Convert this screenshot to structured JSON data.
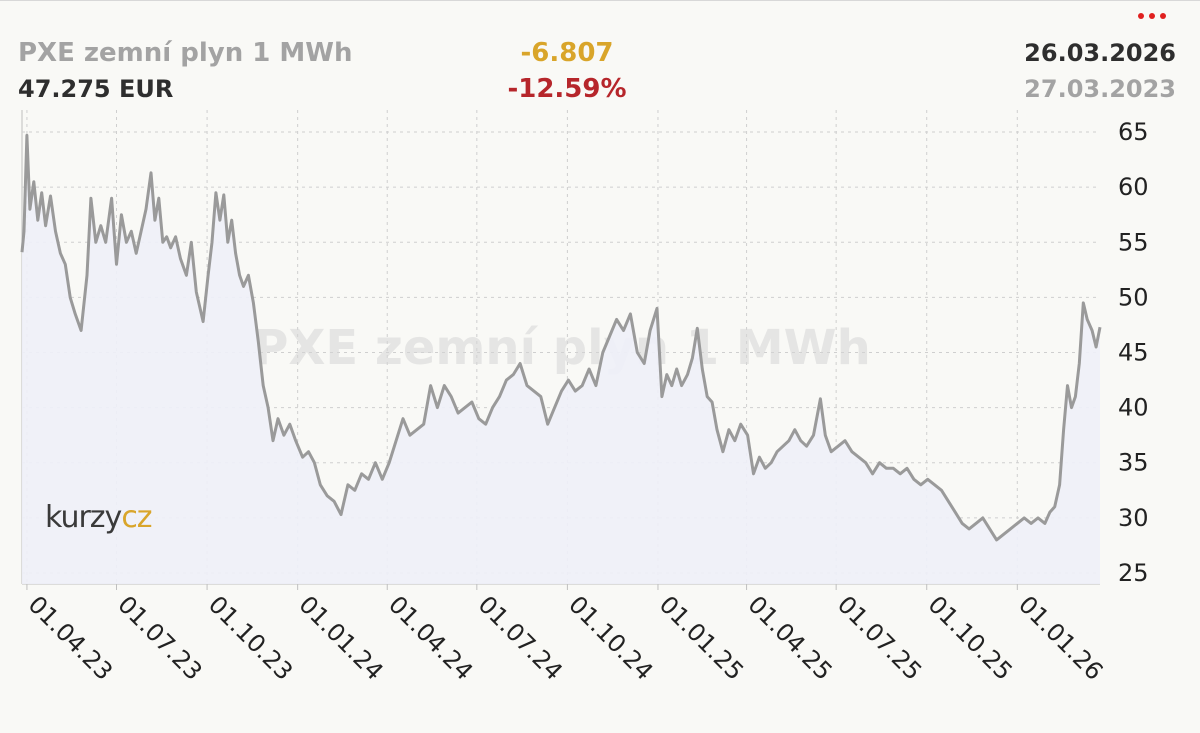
{
  "header": {
    "title": "PXE zemní plyn 1 MWh",
    "price": "47.275 EUR",
    "change": "-6.807",
    "change_pct": "-12.59%",
    "date_end": "26.03.2026",
    "date_start": "27.03.2023"
  },
  "watermark": "PXE zemní plyn 1 MWh",
  "logo": {
    "left": "kurzy",
    "right": "cz"
  },
  "colors": {
    "line": "#9a9a9a",
    "area": "#eef0f8",
    "change": "#d9a52a",
    "change_pct": "#b6262b",
    "menu": "#e0201f"
  },
  "icons": {
    "menu": "more-dots-icon"
  },
  "chart_data": {
    "type": "area",
    "y_ticks": [
      25,
      30,
      35,
      40,
      45,
      50,
      55,
      60,
      65
    ],
    "ylim": [
      24,
      67
    ],
    "y_axis_side": "right",
    "grid": true,
    "x_ticks": [
      {
        "date": "2023-04-01",
        "label": "01.04.23"
      },
      {
        "date": "2023-07-01",
        "label": "01.07.23"
      },
      {
        "date": "2023-10-01",
        "label": "01.10.23"
      },
      {
        "date": "2024-01-01",
        "label": "01.01.24"
      },
      {
        "date": "2024-04-01",
        "label": "01.04.24"
      },
      {
        "date": "2024-07-01",
        "label": "01.07.24"
      },
      {
        "date": "2024-10-01",
        "label": "01.10.24"
      },
      {
        "date": "2025-01-01",
        "label": "01.01.25"
      },
      {
        "date": "2025-04-01",
        "label": "01.04.25"
      },
      {
        "date": "2025-07-01",
        "label": "01.07.25"
      },
      {
        "date": "2025-10-01",
        "label": "01.10.25"
      },
      {
        "date": "2026-01-01",
        "label": "01.01.26"
      }
    ],
    "xlim": [
      "2023-03-27",
      "2026-03-26"
    ],
    "series": [
      {
        "points": [
          [
            "2023-03-27",
            54.1
          ],
          [
            "2023-03-29",
            56.0
          ],
          [
            "2023-04-01",
            64.7
          ],
          [
            "2023-04-04",
            58.0
          ],
          [
            "2023-04-08",
            60.5
          ],
          [
            "2023-04-12",
            57.0
          ],
          [
            "2023-04-16",
            59.5
          ],
          [
            "2023-04-20",
            56.5
          ],
          [
            "2023-04-25",
            59.2
          ],
          [
            "2023-04-30",
            56.0
          ],
          [
            "2023-05-05",
            54.0
          ],
          [
            "2023-05-10",
            53.0
          ],
          [
            "2023-05-15",
            50.0
          ],
          [
            "2023-05-20",
            48.5
          ],
          [
            "2023-05-26",
            47.0
          ],
          [
            "2023-06-01",
            52.0
          ],
          [
            "2023-06-05",
            59.0
          ],
          [
            "2023-06-10",
            55.0
          ],
          [
            "2023-06-15",
            56.5
          ],
          [
            "2023-06-20",
            55.0
          ],
          [
            "2023-06-26",
            59.0
          ],
          [
            "2023-07-01",
            53.0
          ],
          [
            "2023-07-06",
            57.5
          ],
          [
            "2023-07-11",
            55.0
          ],
          [
            "2023-07-16",
            56.0
          ],
          [
            "2023-07-21",
            54.0
          ],
          [
            "2023-07-26",
            56.0
          ],
          [
            "2023-07-31",
            58.0
          ],
          [
            "2023-08-05",
            61.3
          ],
          [
            "2023-08-09",
            57.0
          ],
          [
            "2023-08-13",
            59.0
          ],
          [
            "2023-08-17",
            55.0
          ],
          [
            "2023-08-21",
            55.5
          ],
          [
            "2023-08-25",
            54.5
          ],
          [
            "2023-08-30",
            55.5
          ],
          [
            "2023-09-04",
            53.5
          ],
          [
            "2023-09-10",
            52.0
          ],
          [
            "2023-09-15",
            55.0
          ],
          [
            "2023-09-20",
            50.5
          ],
          [
            "2023-09-27",
            47.8
          ],
          [
            "2023-10-02",
            52.0
          ],
          [
            "2023-10-06",
            55.0
          ],
          [
            "2023-10-10",
            59.5
          ],
          [
            "2023-10-14",
            57.0
          ],
          [
            "2023-10-18",
            59.3
          ],
          [
            "2023-10-22",
            55.0
          ],
          [
            "2023-10-26",
            57.0
          ],
          [
            "2023-10-30",
            54.0
          ],
          [
            "2023-11-03",
            52.0
          ],
          [
            "2023-11-07",
            51.0
          ],
          [
            "2023-11-12",
            52.0
          ],
          [
            "2023-11-17",
            49.5
          ],
          [
            "2023-11-22",
            46.0
          ],
          [
            "2023-11-27",
            42.0
          ],
          [
            "2023-12-02",
            40.0
          ],
          [
            "2023-12-07",
            37.0
          ],
          [
            "2023-12-12",
            39.0
          ],
          [
            "2023-12-18",
            37.5
          ],
          [
            "2023-12-24",
            38.5
          ],
          [
            "2023-12-30",
            37.0
          ],
          [
            "2024-01-06",
            35.5
          ],
          [
            "2024-01-12",
            36.0
          ],
          [
            "2024-01-18",
            35.0
          ],
          [
            "2024-01-24",
            33.0
          ],
          [
            "2024-01-31",
            32.0
          ],
          [
            "2024-02-07",
            31.5
          ],
          [
            "2024-02-14",
            30.3
          ],
          [
            "2024-02-21",
            33.0
          ],
          [
            "2024-02-28",
            32.5
          ],
          [
            "2024-03-06",
            34.0
          ],
          [
            "2024-03-13",
            33.5
          ],
          [
            "2024-03-20",
            35.0
          ],
          [
            "2024-03-27",
            33.5
          ],
          [
            "2024-04-03",
            35.0
          ],
          [
            "2024-04-10",
            37.0
          ],
          [
            "2024-04-17",
            39.0
          ],
          [
            "2024-04-24",
            37.5
          ],
          [
            "2024-05-01",
            38.0
          ],
          [
            "2024-05-08",
            38.5
          ],
          [
            "2024-05-15",
            42.0
          ],
          [
            "2024-05-22",
            40.0
          ],
          [
            "2024-05-29",
            42.0
          ],
          [
            "2024-06-05",
            41.0
          ],
          [
            "2024-06-12",
            39.5
          ],
          [
            "2024-06-19",
            40.0
          ],
          [
            "2024-06-26",
            40.5
          ],
          [
            "2024-07-03",
            39.0
          ],
          [
            "2024-07-10",
            38.5
          ],
          [
            "2024-07-17",
            40.0
          ],
          [
            "2024-07-24",
            41.0
          ],
          [
            "2024-07-31",
            42.5
          ],
          [
            "2024-08-07",
            43.0
          ],
          [
            "2024-08-14",
            44.0
          ],
          [
            "2024-08-21",
            42.0
          ],
          [
            "2024-08-28",
            41.5
          ],
          [
            "2024-09-04",
            41.0
          ],
          [
            "2024-09-11",
            38.5
          ],
          [
            "2024-09-18",
            40.0
          ],
          [
            "2024-09-25",
            41.5
          ],
          [
            "2024-10-02",
            42.5
          ],
          [
            "2024-10-09",
            41.5
          ],
          [
            "2024-10-16",
            42.0
          ],
          [
            "2024-10-23",
            43.5
          ],
          [
            "2024-10-30",
            42.0
          ],
          [
            "2024-11-06",
            45.0
          ],
          [
            "2024-11-13",
            46.5
          ],
          [
            "2024-11-20",
            48.0
          ],
          [
            "2024-11-27",
            47.0
          ],
          [
            "2024-12-04",
            48.5
          ],
          [
            "2024-12-11",
            45.0
          ],
          [
            "2024-12-18",
            44.0
          ],
          [
            "2024-12-24",
            47.0
          ],
          [
            "2024-12-31",
            49.0
          ],
          [
            "2025-01-05",
            41.0
          ],
          [
            "2025-01-10",
            43.0
          ],
          [
            "2025-01-15",
            42.0
          ],
          [
            "2025-01-20",
            43.5
          ],
          [
            "2025-01-25",
            42.0
          ],
          [
            "2025-01-31",
            43.0
          ],
          [
            "2025-02-05",
            44.5
          ],
          [
            "2025-02-10",
            47.2
          ],
          [
            "2025-02-15",
            43.5
          ],
          [
            "2025-02-20",
            41.0
          ],
          [
            "2025-02-25",
            40.5
          ],
          [
            "2025-03-02",
            38.0
          ],
          [
            "2025-03-08",
            36.0
          ],
          [
            "2025-03-14",
            38.0
          ],
          [
            "2025-03-20",
            37.0
          ],
          [
            "2025-03-26",
            38.5
          ],
          [
            "2025-04-02",
            37.5
          ],
          [
            "2025-04-08",
            34.0
          ],
          [
            "2025-04-14",
            35.5
          ],
          [
            "2025-04-20",
            34.5
          ],
          [
            "2025-04-26",
            35.0
          ],
          [
            "2025-05-02",
            36.0
          ],
          [
            "2025-05-08",
            36.5
          ],
          [
            "2025-05-14",
            37.0
          ],
          [
            "2025-05-20",
            38.0
          ],
          [
            "2025-05-26",
            37.0
          ],
          [
            "2025-06-01",
            36.5
          ],
          [
            "2025-06-08",
            37.5
          ],
          [
            "2025-06-15",
            40.8
          ],
          [
            "2025-06-20",
            37.5
          ],
          [
            "2025-06-26",
            36.0
          ],
          [
            "2025-07-03",
            36.5
          ],
          [
            "2025-07-10",
            37.0
          ],
          [
            "2025-07-17",
            36.0
          ],
          [
            "2025-07-24",
            35.5
          ],
          [
            "2025-07-31",
            35.0
          ],
          [
            "2025-08-07",
            34.0
          ],
          [
            "2025-08-14",
            35.0
          ],
          [
            "2025-08-21",
            34.5
          ],
          [
            "2025-08-28",
            34.5
          ],
          [
            "2025-09-04",
            34.0
          ],
          [
            "2025-09-11",
            34.5
          ],
          [
            "2025-09-18",
            33.5
          ],
          [
            "2025-09-25",
            33.0
          ],
          [
            "2025-10-02",
            33.5
          ],
          [
            "2025-10-09",
            33.0
          ],
          [
            "2025-10-16",
            32.5
          ],
          [
            "2025-10-23",
            31.5
          ],
          [
            "2025-10-30",
            30.5
          ],
          [
            "2025-11-06",
            29.5
          ],
          [
            "2025-11-13",
            29.0
          ],
          [
            "2025-11-20",
            29.5
          ],
          [
            "2025-11-27",
            30.0
          ],
          [
            "2025-12-04",
            29.0
          ],
          [
            "2025-12-11",
            28.0
          ],
          [
            "2025-12-18",
            28.5
          ],
          [
            "2025-12-25",
            29.0
          ],
          [
            "2026-01-01",
            29.5
          ],
          [
            "2026-01-08",
            30.0
          ],
          [
            "2026-01-15",
            29.5
          ],
          [
            "2026-01-22",
            30.0
          ],
          [
            "2026-01-29",
            29.5
          ],
          [
            "2026-02-03",
            30.5
          ],
          [
            "2026-02-08",
            31.0
          ],
          [
            "2026-02-13",
            33.0
          ],
          [
            "2026-02-17",
            38.0
          ],
          [
            "2026-02-21",
            42.0
          ],
          [
            "2026-02-25",
            40.0
          ],
          [
            "2026-03-01",
            41.0
          ],
          [
            "2026-03-05",
            44.0
          ],
          [
            "2026-03-09",
            49.5
          ],
          [
            "2026-03-13",
            48.0
          ],
          [
            "2026-03-18",
            47.0
          ],
          [
            "2026-03-22",
            45.5
          ],
          [
            "2026-03-26",
            47.3
          ]
        ]
      }
    ]
  }
}
